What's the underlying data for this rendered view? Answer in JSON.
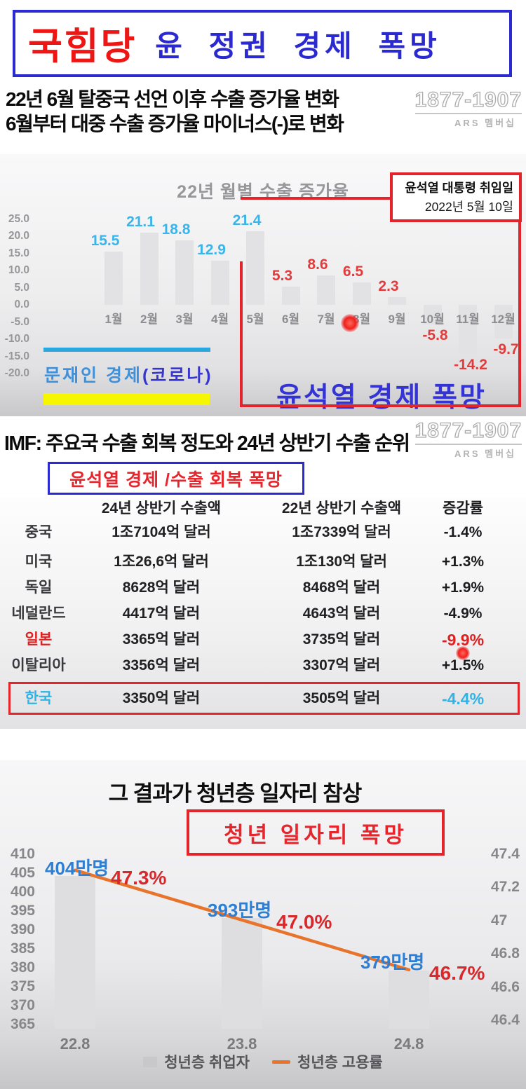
{
  "colors": {
    "banner_red": "#ee1515",
    "banner_blue": "#2a2ad0",
    "accent_red": "#e3242b",
    "handwriting_blue": "#3434d6",
    "handwriting_red": "#e6262d",
    "positive_label_blue": "#38b5ea",
    "negative_label_red": "#e23b3b",
    "japan_red": "#e02020",
    "korea_cyan": "#2fb3e8",
    "employment_blue": "#2e7fd4",
    "rate_red": "#d8282b",
    "line_orange": "#e8742c",
    "moon_blue": "#3f8fd9",
    "moon_paren_blue": "#3636cf",
    "underline_cyan": "#2ba7e0",
    "highlight_yellow": "#f6f600",
    "bar_gray": "#e2e2e5"
  },
  "banner": {
    "party": "국힘당",
    "slogan": "윤 정권 경제 폭망"
  },
  "watermark": {
    "phone": "1877-1907",
    "label": "ARS 멤버십"
  },
  "section1": {
    "headline1": "22년 6월 탈중국 선언 이후 수출 증가율 변화",
    "headline2": "6월부터 대중 수출 증가율 마이너스(-)로 변화",
    "moon_label_main": "문재인 경제",
    "moon_label_paren": "(코로나)",
    "yoon_label": "윤석열 경제 폭망"
  },
  "section2": {
    "headline": "IMF: 주요국 수출 회복 정도와 24년 상반기 수출 순위",
    "callout": "윤석열 경제 /수출 회복 폭망"
  },
  "section3": {
    "callout": "청년 일자리 폭망"
  },
  "chart_data": [
    {
      "type": "bar",
      "title": "22년 월별 수출 증가율",
      "categories": [
        "1월",
        "2월",
        "3월",
        "4월",
        "5월",
        "6월",
        "7월",
        "8월",
        "9월",
        "10월",
        "11월",
        "12월"
      ],
      "values": [
        15.5,
        21.1,
        18.8,
        12.9,
        21.4,
        5.3,
        8.6,
        6.5,
        2.3,
        -5.8,
        -14.2,
        -9.7
      ],
      "label_color_groups": [
        "blue",
        "blue",
        "blue",
        "blue",
        "blue",
        "red",
        "red",
        "red",
        "red",
        "red",
        "red",
        "red"
      ],
      "ylim": [
        -20,
        25
      ],
      "yticks": [
        25,
        20,
        15,
        10,
        5,
        0,
        -5,
        -10,
        -15,
        -20
      ],
      "ytick_format": "25.0",
      "grid": false,
      "legend_position": "none",
      "annotation": [
        "윤석열 대통령 취임일",
        "2022년 5월 10일"
      ]
    },
    {
      "type": "table",
      "columns": [
        "",
        "24년 상반기 수출액",
        "22년 상반기 수출액",
        "증감률"
      ],
      "rows": [
        [
          "중국",
          "1조7104억 달러",
          "1조7339억 달러",
          "-1.4%"
        ],
        [
          "미국",
          "1조26,6억 달러",
          "1조130억 달러",
          "+1.3%"
        ],
        [
          "독일",
          "8628억 달러",
          "8468억 달러",
          "+1.9%"
        ],
        [
          "네덜란드",
          "4417억 달러",
          "4643억 달러",
          "-4.9%"
        ],
        [
          "일본",
          "3365억 달러",
          "3735억 달러",
          "-9.9%"
        ],
        [
          "이탈리아",
          "3356억 달러",
          "3307억 달러",
          "+1.5%"
        ],
        [
          "한국",
          "3350억 달러",
          "3505억 달러",
          "-4.4%"
        ]
      ],
      "row_styles": [
        "",
        "",
        "",
        "",
        "japan",
        "",
        "korea"
      ]
    },
    {
      "type": "bar",
      "title": "그 결과가 청년층 일자리 참상",
      "categories": [
        "22.8",
        "23.8",
        "24.8"
      ],
      "series": [
        {
          "name": "청년층 취업자",
          "chart": "bar",
          "axis": "left",
          "values": [
            404,
            393,
            379
          ],
          "labels": [
            "404만명",
            "393만명",
            "379만명"
          ]
        },
        {
          "name": "청년층 고용률",
          "chart": "line",
          "axis": "right",
          "values": [
            47.3,
            47.0,
            46.7
          ],
          "labels": [
            "47.3%",
            "47.0%",
            "46.7%"
          ]
        }
      ],
      "left_ticks": [
        410,
        405,
        400,
        395,
        390,
        385,
        380,
        375,
        370,
        365
      ],
      "right_ticks": [
        "47.4",
        "47.2",
        "47",
        "46.8",
        "46.6",
        "46.4"
      ],
      "left_range": [
        365,
        410
      ],
      "right_range": [
        46.4,
        47.4
      ],
      "grid": false,
      "legend_position": "bottom"
    }
  ]
}
